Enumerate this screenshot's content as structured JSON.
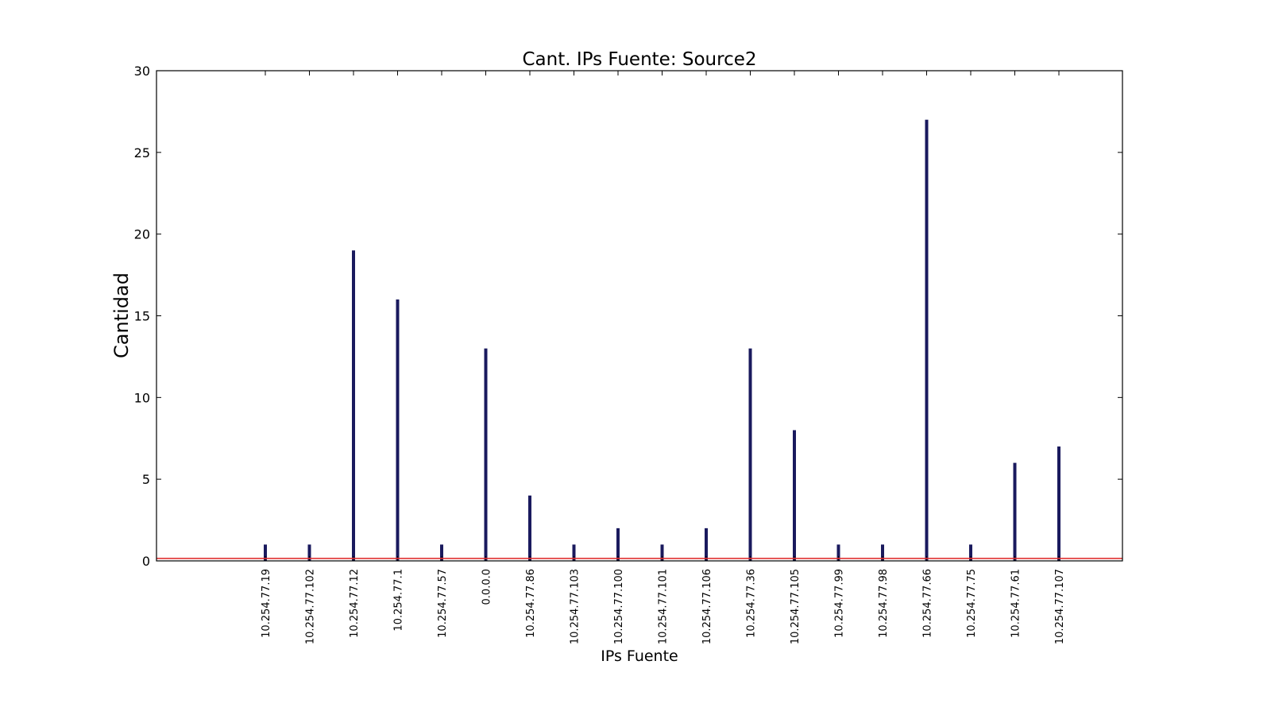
{
  "chart_data": {
    "type": "bar",
    "title": "Cant. IPs Fuente: Source2",
    "xlabel": "IPs Fuente",
    "ylabel": "Cantidad",
    "ylim": [
      0,
      30
    ],
    "yticks": [
      0,
      5,
      10,
      15,
      20,
      25,
      30
    ],
    "categories": [
      "10.254.77.19",
      "10.254.77.102",
      "10.254.77.12",
      "10.254.77.1",
      "10.254.77.57",
      "0.0.0.0",
      "10.254.77.86",
      "10.254.77.103",
      "10.254.77.100",
      "10.254.77.101",
      "10.254.77.106",
      "10.254.77.36",
      "10.254.77.105",
      "10.254.77.99",
      "10.254.77.98",
      "10.254.77.66",
      "10.254.77.75",
      "10.254.77.61",
      "10.254.77.107"
    ],
    "values": [
      1,
      1,
      19,
      16,
      1,
      13,
      4,
      1,
      2,
      1,
      2,
      13,
      8,
      1,
      1,
      27,
      1,
      6,
      7
    ],
    "reference_line": {
      "y": 0.15,
      "color": "#e03030"
    },
    "bar_color": "#1a1a5e",
    "grid": false,
    "legend": "none"
  }
}
